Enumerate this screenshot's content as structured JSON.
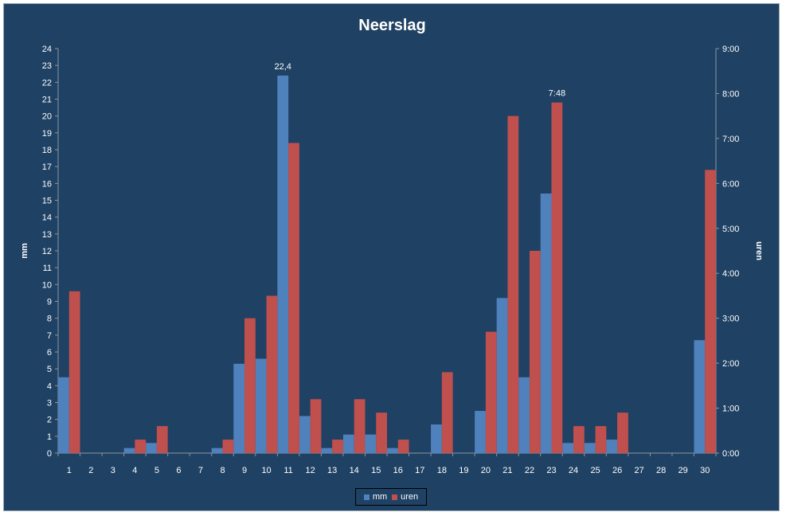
{
  "chart_data": {
    "type": "bar",
    "title": "Neerslag",
    "ylabel": "mm",
    "y2label": "uren",
    "ylim": [
      0,
      24
    ],
    "y2lim_hours": [
      0,
      9
    ],
    "yticks": [
      "0",
      "1",
      "2",
      "3",
      "4",
      "5",
      "6",
      "7",
      "8",
      "9",
      "10",
      "11",
      "12",
      "13",
      "14",
      "15",
      "16",
      "17",
      "18",
      "19",
      "20",
      "21",
      "22",
      "23",
      "24"
    ],
    "y2ticks": [
      "0:00",
      "1:00",
      "2:00",
      "3:00",
      "4:00",
      "5:00",
      "6:00",
      "7:00",
      "8:00",
      "9:00"
    ],
    "categories": [
      "1",
      "2",
      "3",
      "4",
      "5",
      "6",
      "7",
      "8",
      "9",
      "10",
      "11",
      "12",
      "13",
      "14",
      "15",
      "16",
      "17",
      "18",
      "19",
      "20",
      "21",
      "22",
      "23",
      "24",
      "25",
      "26",
      "27",
      "28",
      "29",
      "30"
    ],
    "series": [
      {
        "name": "mm",
        "axis": "left",
        "color": "#4f81bd",
        "values": [
          4.5,
          0,
          0,
          0.3,
          0.6,
          0,
          0,
          0.3,
          5.3,
          5.6,
          22.4,
          2.2,
          0.3,
          1.1,
          1.1,
          0.3,
          0,
          1.7,
          0,
          2.5,
          9.2,
          4.5,
          15.4,
          0.6,
          0.6,
          0.8,
          0,
          0,
          0,
          6.7
        ]
      },
      {
        "name": "uren",
        "axis": "right",
        "color": "#c0504d",
        "values_hours": [
          3.6,
          0,
          0,
          0.3,
          0.6,
          0,
          0,
          0.3,
          3.0,
          3.5,
          6.9,
          1.2,
          0.3,
          1.2,
          0.9,
          0.3,
          0,
          1.8,
          0,
          2.7,
          7.5,
          4.5,
          7.8,
          0.6,
          0.6,
          0.9,
          0,
          0,
          0,
          6.3
        ]
      }
    ],
    "data_labels": [
      {
        "series": "mm",
        "category": "11",
        "text": "22,4"
      },
      {
        "series": "uren",
        "category": "23",
        "text": "7:48"
      }
    ],
    "legend_position": "bottom",
    "grid": false
  }
}
